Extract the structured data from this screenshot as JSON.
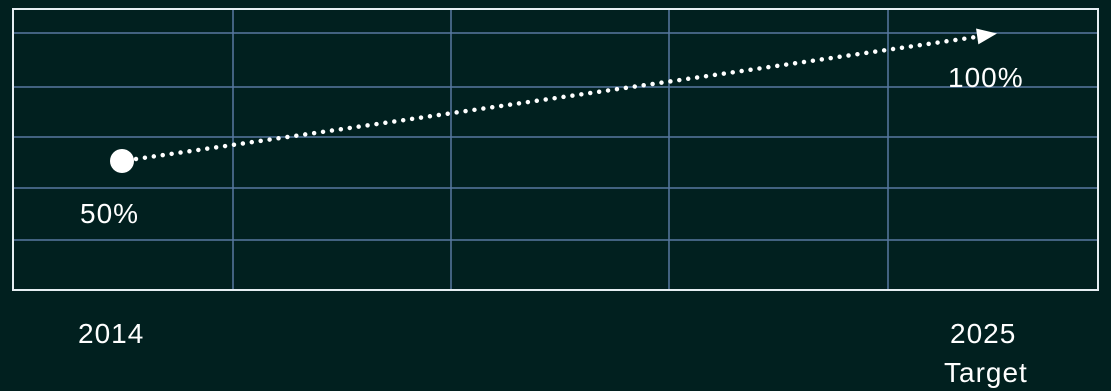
{
  "colors": {
    "background": "#01201f",
    "grid": "#5878a0",
    "frame": "#e6eef2",
    "line": "#ffffff"
  },
  "chart_data": {
    "type": "line",
    "series": [
      {
        "points": [
          {
            "x": 2014,
            "y": 50
          },
          {
            "x": 2025,
            "y": 100
          }
        ],
        "data_labels": [
          "50%",
          "100%"
        ],
        "line_style": "dotted-arrow"
      }
    ],
    "x_labels": [
      {
        "x": 2014,
        "lines": [
          "2014"
        ]
      },
      {
        "x": 2025,
        "lines": [
          "2025",
          "Target"
        ]
      }
    ],
    "grid": true
  }
}
